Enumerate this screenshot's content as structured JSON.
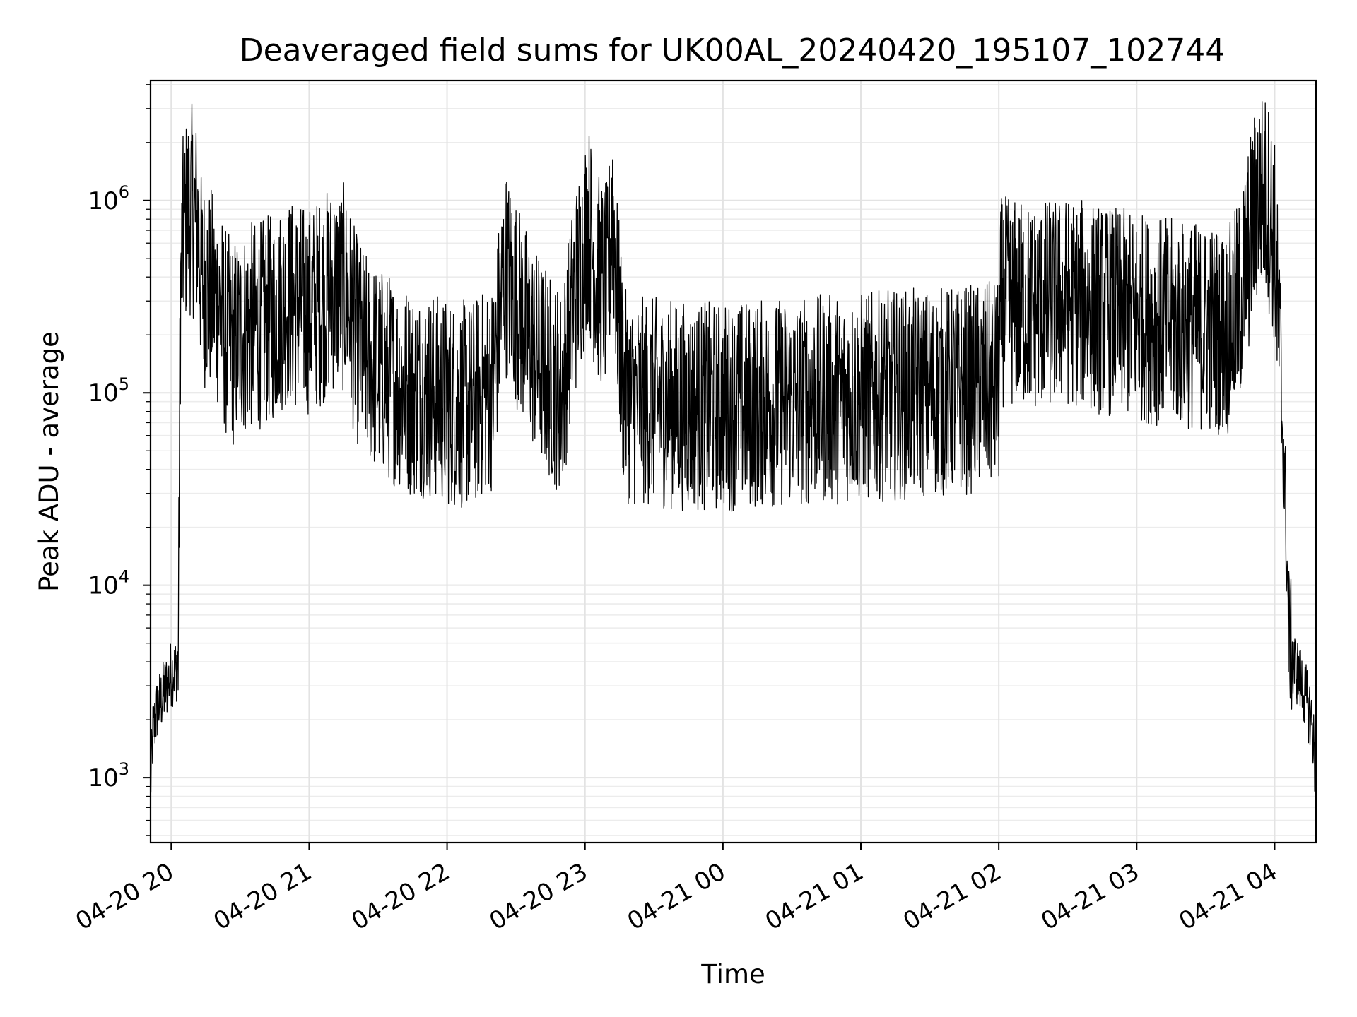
{
  "chart_data": {
    "type": "line",
    "title": "Deaveraged field sums for UK00AL_20240420_195107_102744",
    "xlabel": "Time",
    "ylabel": "Peak ADU - average",
    "x_axis": {
      "kind": "time",
      "range": [
        "2024-04-20 19:51",
        "2024-04-21 04:18"
      ],
      "tick_values": [
        "2024-04-20 20:00",
        "2024-04-20 21:00",
        "2024-04-20 22:00",
        "2024-04-20 23:00",
        "2024-04-21 00:00",
        "2024-04-21 01:00",
        "2024-04-21 02:00",
        "2024-04-21 03:00",
        "2024-04-21 04:00"
      ],
      "tick_labels": [
        "04-20 20",
        "04-20 21",
        "04-20 22",
        "04-20 23",
        "04-21 00",
        "04-21 01",
        "04-21 02",
        "04-21 03",
        "04-21 04"
      ],
      "tick_label_rotation_deg": -30
    },
    "y_axis": {
      "scale": "log",
      "range": [
        460,
        4200000
      ],
      "tick_values": [
        1000,
        10000,
        100000,
        1000000
      ],
      "tick_base": "10",
      "tick_exponents": [
        "3",
        "4",
        "5",
        "6"
      ]
    },
    "grid": true,
    "series": [
      {
        "color": "#000000",
        "x": [
          "2024-04-20 19:51",
          "2024-04-20 19:52",
          "2024-04-20 19:54",
          "2024-04-20 19:56",
          "2024-04-20 19:58",
          "2024-04-20 20:00",
          "2024-04-20 20:02",
          "2024-04-20 20:03",
          "2024-04-20 20:04",
          "2024-04-20 20:05",
          "2024-04-20 20:07",
          "2024-04-20 20:09",
          "2024-04-20 20:12",
          "2024-04-20 20:13",
          "2024-04-20 20:14",
          "2024-04-20 20:16",
          "2024-04-20 20:20",
          "2024-04-20 20:22",
          "2024-04-20 20:24",
          "2024-04-20 20:27",
          "2024-04-20 20:30",
          "2024-04-20 20:35",
          "2024-04-20 20:40",
          "2024-04-20 20:45",
          "2024-04-20 20:50",
          "2024-04-20 20:55",
          "2024-04-20 21:00",
          "2024-04-20 21:05",
          "2024-04-20 21:10",
          "2024-04-20 21:15",
          "2024-04-20 21:17",
          "2024-04-20 21:20",
          "2024-04-20 21:25",
          "2024-04-20 21:30",
          "2024-04-20 21:35",
          "2024-04-20 21:40",
          "2024-04-20 21:45",
          "2024-04-20 21:50",
          "2024-04-20 22:00",
          "2024-04-20 22:10",
          "2024-04-20 22:20",
          "2024-04-20 22:25",
          "2024-04-20 22:30",
          "2024-04-20 22:35",
          "2024-04-20 22:40",
          "2024-04-20 22:45",
          "2024-04-20 22:50",
          "2024-04-20 22:55",
          "2024-04-20 23:00",
          "2024-04-20 23:01",
          "2024-04-20 23:05",
          "2024-04-20 23:10",
          "2024-04-20 23:12",
          "2024-04-20 23:14",
          "2024-04-20 23:17",
          "2024-04-20 23:20",
          "2024-04-20 23:30",
          "2024-04-20 23:45",
          "2024-04-21 00:00",
          "2024-04-21 00:30",
          "2024-04-21 01:00",
          "2024-04-21 01:30",
          "2024-04-21 01:50",
          "2024-04-21 02:00",
          "2024-04-21 02:01",
          "2024-04-21 02:15",
          "2024-04-21 02:30",
          "2024-04-21 02:45",
          "2024-04-21 03:00",
          "2024-04-21 03:15",
          "2024-04-21 03:30",
          "2024-04-21 03:40",
          "2024-04-21 03:45",
          "2024-04-21 03:50",
          "2024-04-21 03:53",
          "2024-04-21 03:57",
          "2024-04-21 04:00",
          "2024-04-21 04:03",
          "2024-04-21 04:05",
          "2024-04-21 04:06",
          "2024-04-21 04:08",
          "2024-04-21 04:10",
          "2024-04-21 04:12",
          "2024-04-21 04:14",
          "2024-04-21 04:16",
          "2024-04-21 04:17",
          "2024-04-21 04:18"
        ],
        "y": [
          900,
          1700,
          2300,
          2600,
          3000,
          3500,
          3600,
          4000,
          300000,
          600000,
          850000,
          900000,
          700000,
          400000,
          380000,
          350000,
          300000,
          250000,
          200000,
          180000,
          200000,
          220000,
          230000,
          250000,
          300000,
          280000,
          270000,
          300000,
          350000,
          350000,
          300000,
          200000,
          150000,
          130000,
          120000,
          110000,
          100000,
          100000,
          90000,
          85000,
          110000,
          450000,
          300000,
          200000,
          150000,
          120000,
          100000,
          300000,
          600000,
          800000,
          400000,
          350000,
          1000000,
          300000,
          100000,
          90000,
          90000,
          85000,
          85000,
          90000,
          95000,
          100000,
          105000,
          110000,
          300000,
          280000,
          300000,
          270000,
          250000,
          230000,
          220000,
          210000,
          300000,
          700000,
          1100000,
          1000000,
          600000,
          100000,
          20000,
          6000,
          4000,
          3500,
          3000,
          2500,
          2000,
          1500,
          900
        ]
      }
    ],
    "notes_visible": "dense noisy trace; envelope captured"
  }
}
